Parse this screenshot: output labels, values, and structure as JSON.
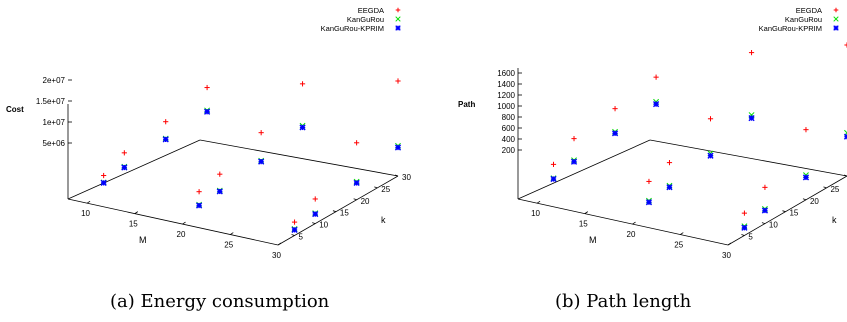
{
  "chart_data": [
    {
      "type": "scatter",
      "subtype": "3d",
      "caption": "(a) Energy consumption",
      "xlabel": "M",
      "ylabel": "k",
      "zlabel": "Cost",
      "xticks": [
        "10",
        "15",
        "20",
        "25",
        "30"
      ],
      "yticks": [
        "5",
        "10",
        "15",
        "20",
        "25",
        "30"
      ],
      "zticks": [
        "5e+06",
        "1e+07",
        "1.5e+07",
        "2e+07"
      ],
      "xlim": [
        8,
        30
      ],
      "ylim": [
        1,
        30
      ],
      "zlim": [
        0,
        22000000
      ],
      "legend_position": "top-right",
      "series": [
        {
          "name": "EEGDA",
          "marker": "+",
          "color": "#ff0000",
          "points": [
            [
              10,
              5,
              4200000
            ],
            [
              10,
              10,
              6700000
            ],
            [
              10,
              20,
              8400000
            ],
            [
              10,
              30,
              10800000
            ],
            [
              20,
              5,
              5300000
            ],
            [
              20,
              10,
              6600000
            ],
            [
              20,
              20,
              10700000
            ],
            [
              20,
              30,
              16500000
            ],
            [
              30,
              5,
              3100000
            ],
            [
              30,
              10,
              5700000
            ],
            [
              30,
              20,
              13200000
            ],
            [
              30,
              30,
              22000000
            ]
          ]
        },
        {
          "name": "KanGuRou",
          "marker": "x",
          "color": "#00dd00",
          "points": [
            [
              10,
              5,
              2600000
            ],
            [
              10,
              10,
              3500000
            ],
            [
              10,
              20,
              4500000
            ],
            [
              10,
              30,
              5500000
            ],
            [
              20,
              5,
              2300000
            ],
            [
              20,
              10,
              2800000
            ],
            [
              20,
              20,
              4200000
            ],
            [
              20,
              30,
              6800000
            ],
            [
              30,
              5,
              1500000
            ],
            [
              30,
              10,
              2400000
            ],
            [
              30,
              20,
              4200000
            ],
            [
              30,
              30,
              7000000
            ]
          ]
        },
        {
          "name": "KanGuRou-KPRIM",
          "marker": "*",
          "color": "#0000ff",
          "points": [
            [
              10,
              5,
              2500000
            ],
            [
              10,
              10,
              3300000
            ],
            [
              10,
              20,
              4300000
            ],
            [
              10,
              30,
              5200000
            ],
            [
              20,
              5,
              2100000
            ],
            [
              20,
              10,
              2600000
            ],
            [
              20,
              20,
              4000000
            ],
            [
              20,
              30,
              6400000
            ],
            [
              30,
              5,
              1300000
            ],
            [
              30,
              10,
              2200000
            ],
            [
              30,
              20,
              3900000
            ],
            [
              30,
              30,
              6600000
            ]
          ]
        }
      ]
    },
    {
      "type": "scatter",
      "subtype": "3d",
      "caption": "(b) Path length",
      "xlabel": "M",
      "ylabel": "k",
      "zlabel": "Path",
      "xticks": [
        "10",
        "15",
        "20",
        "25",
        "30"
      ],
      "yticks": [
        "5",
        "10",
        "15",
        "20",
        "25",
        "30"
      ],
      "zticks": [
        "200",
        "400",
        "600",
        "800",
        "1000",
        "1200",
        "1400",
        "1600"
      ],
      "xlim": [
        8,
        30
      ],
      "ylim": [
        1,
        30
      ],
      "zlim": [
        0,
        1700
      ],
      "legend_position": "top-right",
      "series": [
        {
          "name": "EEGDA",
          "marker": "+",
          "color": "#ff0000",
          "points": [
            [
              10,
              5,
              380
            ],
            [
              10,
              10,
              560
            ],
            [
              10,
              20,
              640
            ],
            [
              10,
              30,
              740
            ],
            [
              20,
              5,
              430
            ],
            [
              20,
              10,
              520
            ],
            [
              20,
              20,
              780
            ],
            [
              20,
              30,
              1330
            ],
            [
              30,
              5,
              290
            ],
            [
              30,
              10,
              470
            ],
            [
              30,
              20,
              910
            ],
            [
              30,
              30,
              1700
            ]
          ]
        },
        {
          "name": "KanGuRou",
          "marker": "x",
          "color": "#00dd00",
          "points": [
            [
              10,
              5,
              200
            ],
            [
              10,
              10,
              280
            ],
            [
              10,
              20,
              340
            ],
            [
              10,
              30,
              420
            ],
            [
              20,
              5,
              180
            ],
            [
              20,
              10,
              220
            ],
            [
              20,
              20,
              330
            ],
            [
              20,
              30,
              520
            ],
            [
              30,
              5,
              120
            ],
            [
              30,
              10,
              190
            ],
            [
              30,
              20,
              320
            ],
            [
              30,
              30,
              560
            ]
          ]
        },
        {
          "name": "KanGuRou-KPRIM",
          "marker": "*",
          "color": "#0000ff",
          "points": [
            [
              10,
              5,
              190
            ],
            [
              10,
              10,
              260
            ],
            [
              10,
              20,
              320
            ],
            [
              10,
              30,
              390
            ],
            [
              20,
              5,
              160
            ],
            [
              20,
              10,
              200
            ],
            [
              20,
              20,
              300
            ],
            [
              20,
              30,
              480
            ],
            [
              30,
              5,
              100
            ],
            [
              30,
              10,
              170
            ],
            [
              30,
              20,
              290
            ],
            [
              30,
              30,
              510
            ]
          ]
        }
      ]
    }
  ]
}
